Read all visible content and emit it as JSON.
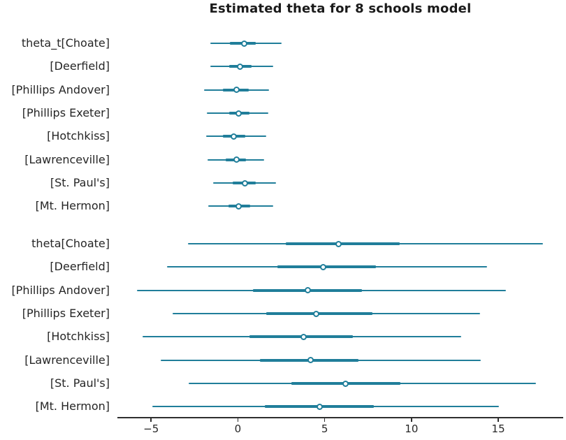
{
  "chart_data": {
    "type": "forest",
    "title": "Estimated theta for 8 schools model",
    "accent_color": "#207e9a",
    "text_color": "#262626",
    "axis_color": "#2f2f2f",
    "xlim": [
      -6.94,
      18.74
    ],
    "xticks": [
      {
        "value": -5,
        "label": "−5"
      },
      {
        "value": 0,
        "label": "0"
      },
      {
        "value": 5,
        "label": "5"
      },
      {
        "value": 10,
        "label": "10"
      },
      {
        "value": 15,
        "label": "15"
      }
    ],
    "legend": "none",
    "grid": false,
    "groups": [
      {
        "name": "theta_t",
        "rows": [
          {
            "label": "theta_t[Choate]",
            "hdi": [
              -1.6,
              2.5
            ],
            "iqr": [
              -0.45,
              1.03
            ],
            "median": 0.35
          },
          {
            "label": "[Deerfield]",
            "hdi": [
              -1.58,
              2.03
            ],
            "iqr": [
              -0.5,
              0.78
            ],
            "median": 0.14
          },
          {
            "label": "[Phillips Andover]",
            "hdi": [
              -1.95,
              1.79
            ],
            "iqr": [
              -0.85,
              0.62
            ],
            "median": -0.09
          },
          {
            "label": "[Phillips Exeter]",
            "hdi": [
              -1.79,
              1.75
            ],
            "iqr": [
              -0.52,
              0.66
            ],
            "median": 0.05
          },
          {
            "label": "[Hotchkiss]",
            "hdi": [
              -1.84,
              1.63
            ],
            "iqr": [
              -0.85,
              0.43
            ],
            "median": -0.22
          },
          {
            "label": "[Lawrenceville]",
            "hdi": [
              -1.75,
              1.51
            ],
            "iqr": [
              -0.72,
              0.47
            ],
            "median": -0.09
          },
          {
            "label": "[St. Paul's]",
            "hdi": [
              -1.44,
              2.18
            ],
            "iqr": [
              -0.29,
              1.05
            ],
            "median": 0.42
          },
          {
            "label": "[Mt. Hermon]",
            "hdi": [
              -1.72,
              2.02
            ],
            "iqr": [
              -0.56,
              0.69
            ],
            "median": 0.05
          }
        ]
      },
      {
        "name": "theta",
        "rows": [
          {
            "label": "theta[Choate]",
            "hdi": [
              -2.89,
              17.56
            ],
            "iqr": [
              2.76,
              9.33
            ],
            "median": 5.78
          },
          {
            "label": "[Deerfield]",
            "hdi": [
              -4.09,
              14.36
            ],
            "iqr": [
              2.26,
              7.96
            ],
            "median": 4.92
          },
          {
            "label": "[Phillips Andover]",
            "hdi": [
              -5.82,
              15.45
            ],
            "iqr": [
              0.87,
              7.13
            ],
            "median": 4.01
          },
          {
            "label": "[Phillips Exeter]",
            "hdi": [
              -3.75,
              13.94
            ],
            "iqr": [
              1.63,
              7.76
            ],
            "median": 4.5
          },
          {
            "label": "[Hotchkiss]",
            "hdi": [
              -5.5,
              12.86
            ],
            "iqr": [
              0.68,
              6.62
            ],
            "median": 3.8
          },
          {
            "label": "[Lawrenceville]",
            "hdi": [
              -4.46,
              13.98
            ],
            "iqr": [
              1.26,
              6.96
            ],
            "median": 4.17
          },
          {
            "label": "[St. Paul's]",
            "hdi": [
              -2.84,
              17.16
            ],
            "iqr": [
              3.07,
              9.35
            ],
            "median": 6.22
          },
          {
            "label": "[Mt. Hermon]",
            "hdi": [
              -4.92,
              15.05
            ],
            "iqr": [
              1.56,
              7.83
            ],
            "median": 4.72
          }
        ]
      }
    ]
  }
}
